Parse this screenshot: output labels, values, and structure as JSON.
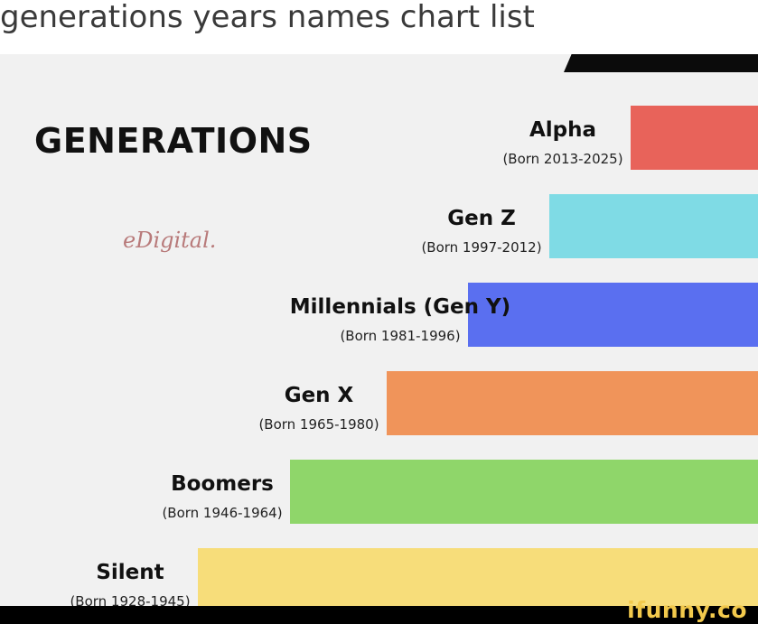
{
  "caption": "generations years names chart list",
  "infographic": {
    "title": "GENERATIONS",
    "brand": "eDigital."
  },
  "chart_data": {
    "type": "bar",
    "orientation": "horizontal",
    "title": "GENERATIONS",
    "categories": [
      {
        "name": "Alpha",
        "years": "(Born 2013-2025)",
        "start": 2013,
        "end": 2025,
        "color": "#e8635a"
      },
      {
        "name": "Gen Z",
        "years": "(Born 1997-2012)",
        "start": 1997,
        "end": 2012,
        "color": "#7fdbe5"
      },
      {
        "name": "Millennials (Gen Y)",
        "years": "(Born 1981-1996)",
        "start": 1981,
        "end": 1996,
        "color": "#5a6ff0"
      },
      {
        "name": "Gen X",
        "years": "(Born 1965-1980)",
        "start": 1965,
        "end": 1980,
        "color": "#f0945a"
      },
      {
        "name": "Boomers",
        "years": "(Born 1946-1964)",
        "start": 1946,
        "end": 1964,
        "color": "#8fd66a"
      },
      {
        "name": "Silent",
        "years": "(Born 1928-1945)",
        "start": 1928,
        "end": 1945,
        "color": "#f7dd7a"
      }
    ],
    "grid": false,
    "legend": "none"
  },
  "watermark": "ifunny.co"
}
